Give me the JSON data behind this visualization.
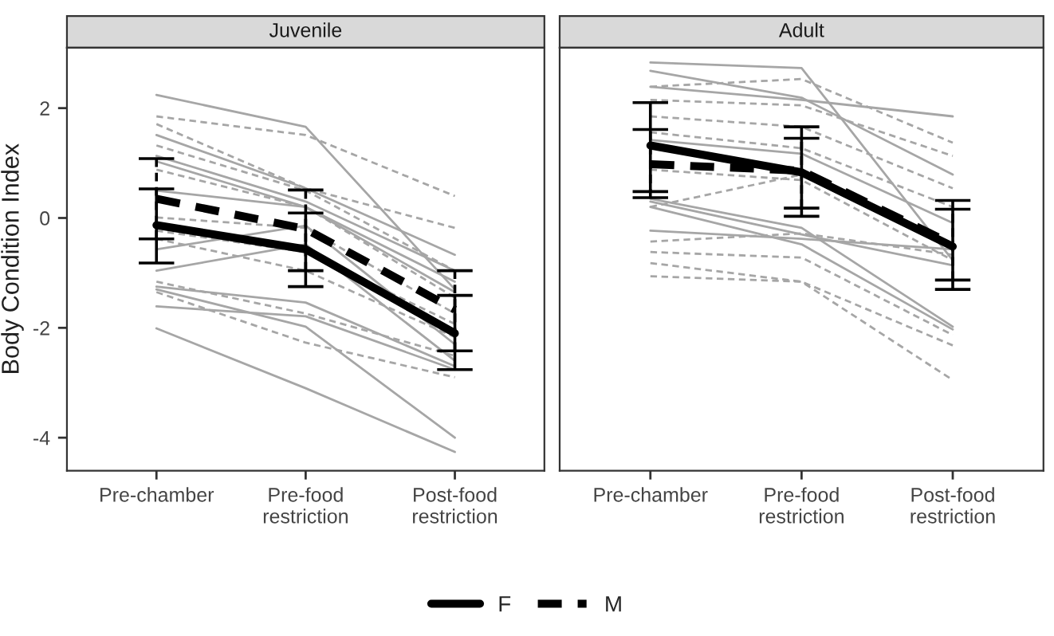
{
  "chart_data": [
    {
      "type": "line",
      "title": "Juvenile",
      "ylabel": "Body Condition Index",
      "categories": [
        "Pre-chamber",
        "Pre-food\nrestriction",
        "Post-food\nrestriction"
      ],
      "ylim": [
        -4.6,
        3.1
      ],
      "yticks": [
        -4,
        -2,
        0,
        2
      ],
      "grid": false,
      "marker": "none",
      "legend": "bottom",
      "series": [
        {
          "color": "#a6a6a6",
          "line_style": "solid",
          "values": [
            2.24,
            1.66,
            -1.3
          ]
        },
        {
          "color": "#a6a6a6",
          "line_style": "solid",
          "values": [
            1.51,
            0.54,
            -0.67
          ]
        },
        {
          "color": "#a6a6a6",
          "line_style": "solid",
          "values": [
            1.13,
            0.3,
            -0.96
          ]
        },
        {
          "color": "#a6a6a6",
          "line_style": "solid",
          "values": [
            1.03,
            0.2,
            -1.16
          ]
        },
        {
          "color": "#a6a6a6",
          "line_style": "solid",
          "values": [
            0.5,
            0.2,
            -1.35
          ]
        },
        {
          "color": "#a6a6a6",
          "line_style": "solid",
          "values": [
            -0.57,
            -0.14,
            -2.3
          ]
        },
        {
          "color": "#a6a6a6",
          "line_style": "solid",
          "values": [
            -0.96,
            -0.48,
            -2.6
          ]
        },
        {
          "color": "#a6a6a6",
          "line_style": "solid",
          "values": [
            -1.25,
            -1.54,
            -2.7
          ]
        },
        {
          "color": "#a6a6a6",
          "line_style": "solid",
          "values": [
            -1.61,
            -1.79,
            -2.76
          ]
        },
        {
          "color": "#a6a6a6",
          "line_style": "solid",
          "values": [
            -1.3,
            -1.98,
            -4.0
          ]
        },
        {
          "color": "#a6a6a6",
          "line_style": "solid",
          "values": [
            -2.01,
            -3.1,
            -4.26
          ]
        },
        {
          "color": "#a6a6a6",
          "line_style": "dashed",
          "values": [
            1.85,
            1.51,
            0.4
          ]
        },
        {
          "color": "#a6a6a6",
          "line_style": "dashed",
          "values": [
            1.71,
            0.54,
            -0.18
          ]
        },
        {
          "color": "#a6a6a6",
          "line_style": "dashed",
          "values": [
            1.32,
            0.5,
            -0.96
          ]
        },
        {
          "color": "#a6a6a6",
          "line_style": "dashed",
          "values": [
            0.88,
            0.2,
            -1.45
          ]
        },
        {
          "color": "#a6a6a6",
          "line_style": "dashed",
          "values": [
            0.01,
            -0.18,
            -1.74
          ]
        },
        {
          "color": "#a6a6a6",
          "line_style": "dashed",
          "values": [
            -0.23,
            -0.62,
            -1.93
          ]
        },
        {
          "color": "#a6a6a6",
          "line_style": "dashed",
          "values": [
            -0.38,
            -0.96,
            -2.17
          ]
        },
        {
          "color": "#a6a6a6",
          "line_style": "dashed",
          "values": [
            -1.16,
            -1.74,
            -2.51
          ]
        },
        {
          "color": "#a6a6a6",
          "line_style": "dashed",
          "values": [
            -1.35,
            -2.27,
            -2.9
          ]
        },
        {
          "name": "F",
          "color": "#000000",
          "line_style": "solid",
          "values": [
            -0.13,
            -0.57,
            -2.1
          ],
          "errors": [
            [
              -0.82,
              0.53
            ],
            [
              -1.25,
              0.09
            ],
            [
              -2.76,
              -1.41
            ]
          ]
        },
        {
          "name": "M",
          "color": "#000000",
          "line_style": "dashed",
          "values": [
            0.35,
            -0.2,
            -1.67
          ],
          "errors": [
            [
              -0.38,
              1.08
            ],
            [
              -0.96,
              0.51
            ],
            [
              -2.42,
              -0.96
            ]
          ]
        }
      ]
    },
    {
      "type": "line",
      "title": "Adult",
      "categories": [
        "Pre-chamber",
        "Pre-food\nrestriction",
        "Post-food\nrestriction"
      ],
      "ylim": [
        -4.6,
        3.1
      ],
      "tick_labels": "x",
      "grid": false,
      "marker": "none",
      "legend": "bottom",
      "series": [
        {
          "color": "#a6a6a6",
          "line_style": "solid",
          "values": [
            2.83,
            2.73,
            -0.77
          ]
        },
        {
          "color": "#a6a6a6",
          "line_style": "solid",
          "values": [
            2.68,
            2.19,
            0.79
          ]
        },
        {
          "color": "#a6a6a6",
          "line_style": "solid",
          "values": [
            2.39,
            2.15,
            1.85
          ]
        },
        {
          "color": "#a6a6a6",
          "line_style": "solid",
          "values": [
            1.42,
            1.17,
            -0.09
          ]
        },
        {
          "color": "#a6a6a6",
          "line_style": "solid",
          "values": [
            0.35,
            -0.18,
            -1.98
          ]
        },
        {
          "color": "#a6a6a6",
          "line_style": "solid",
          "values": [
            0.2,
            -0.48,
            -2.03
          ]
        },
        {
          "color": "#a6a6a6",
          "line_style": "solid",
          "values": [
            -0.23,
            -0.38,
            -0.57
          ]
        },
        {
          "color": "#a6a6a6",
          "line_style": "solid",
          "values": [
            0.3,
            -0.3,
            -0.86
          ]
        },
        {
          "color": "#a6a6a6",
          "line_style": "dashed",
          "values": [
            2.39,
            2.53,
            1.37
          ]
        },
        {
          "color": "#a6a6a6",
          "line_style": "dashed",
          "values": [
            2.15,
            2.05,
            1.13
          ]
        },
        {
          "color": "#a6a6a6",
          "line_style": "dashed",
          "values": [
            1.85,
            1.66,
            0.54
          ]
        },
        {
          "color": "#a6a6a6",
          "line_style": "dashed",
          "values": [
            1.56,
            1.27,
            0.2
          ]
        },
        {
          "color": "#a6a6a6",
          "line_style": "dashed",
          "values": [
            0.88,
            0.69,
            -0.77
          ]
        },
        {
          "color": "#a6a6a6",
          "line_style": "dashed",
          "values": [
            0.2,
            0.79,
            -0.57
          ]
        },
        {
          "color": "#a6a6a6",
          "line_style": "dashed",
          "values": [
            -0.43,
            -0.28,
            -0.67
          ]
        },
        {
          "color": "#a6a6a6",
          "line_style": "dashed",
          "values": [
            -0.62,
            -0.72,
            -2.13
          ]
        },
        {
          "color": "#a6a6a6",
          "line_style": "dashed",
          "values": [
            -0.82,
            -1.16,
            -2.32
          ]
        },
        {
          "color": "#a6a6a6",
          "line_style": "dashed",
          "values": [
            -1.06,
            -1.16,
            -2.95
          ]
        },
        {
          "name": "F",
          "color": "#000000",
          "line_style": "solid",
          "values": [
            1.32,
            0.83,
            -0.52
          ],
          "errors": [
            [
              0.48,
              2.1
            ],
            [
              0.03,
              1.66
            ],
            [
              -1.3,
              0.32
            ]
          ]
        },
        {
          "name": "M",
          "color": "#000000",
          "line_style": "dashed",
          "values": [
            0.98,
            0.86,
            -0.48
          ],
          "errors": [
            [
              0.37,
              1.61
            ],
            [
              0.18,
              1.45
            ],
            [
              -1.13,
              0.16
            ]
          ]
        }
      ]
    }
  ]
}
